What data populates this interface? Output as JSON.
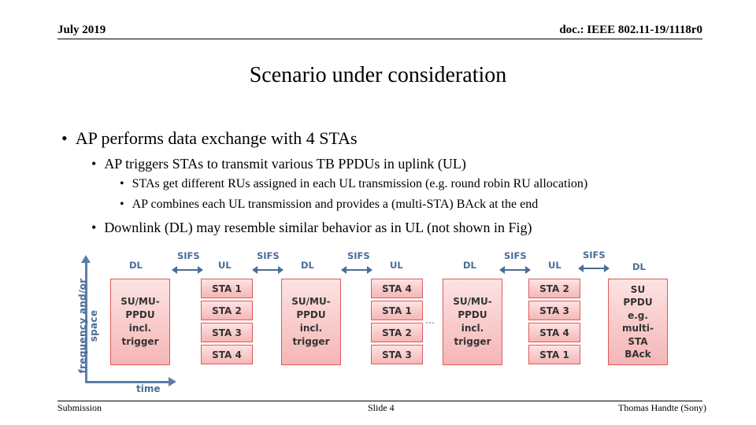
{
  "header": {
    "date": "July 2019",
    "doc": "doc.: IEEE 802.11-19/1118r0"
  },
  "title": "Scenario under consideration",
  "bullets": {
    "l1": "AP performs data exchange with 4 STAs",
    "l2a": "AP triggers STAs to transmit various TB PPDUs in uplink (UL)",
    "l3a": "STAs get different RUs assigned in each UL transmission (e.g. round robin RU allocation)",
    "l3b": "AP combines each UL transmission and provides a (multi-STA) BAck at the end",
    "l2b": "Downlink (DL) may resemble similar behavior as in UL (not shown in Fig)"
  },
  "diagram": {
    "ylabel": "frequency and/or space",
    "xlabel": "time",
    "dl": "DL",
    "ul": "UL",
    "sifs": "SIFS",
    "trigger_line1": "SU/MU-",
    "trigger_line2": "PPDU",
    "trigger_line3": "incl.",
    "trigger_line4": "trigger",
    "ul1": [
      "STA 1",
      "STA 2",
      "STA 3",
      "STA 4"
    ],
    "ul2": [
      "STA 4",
      "STA 1",
      "STA 2",
      "STA 3"
    ],
    "ul3": [
      "STA 2",
      "STA 3",
      "STA 4",
      "STA 1"
    ],
    "ellipsis": "…",
    "final_line1": "SU",
    "final_line2": "PPDU",
    "final_line3": "e.g.",
    "final_line4": "multi-",
    "final_line5": "STA",
    "final_line6": "BAck"
  },
  "footer": {
    "left": "Submission",
    "mid": "Slide 4",
    "right": "Thomas Handte (Sony)"
  }
}
